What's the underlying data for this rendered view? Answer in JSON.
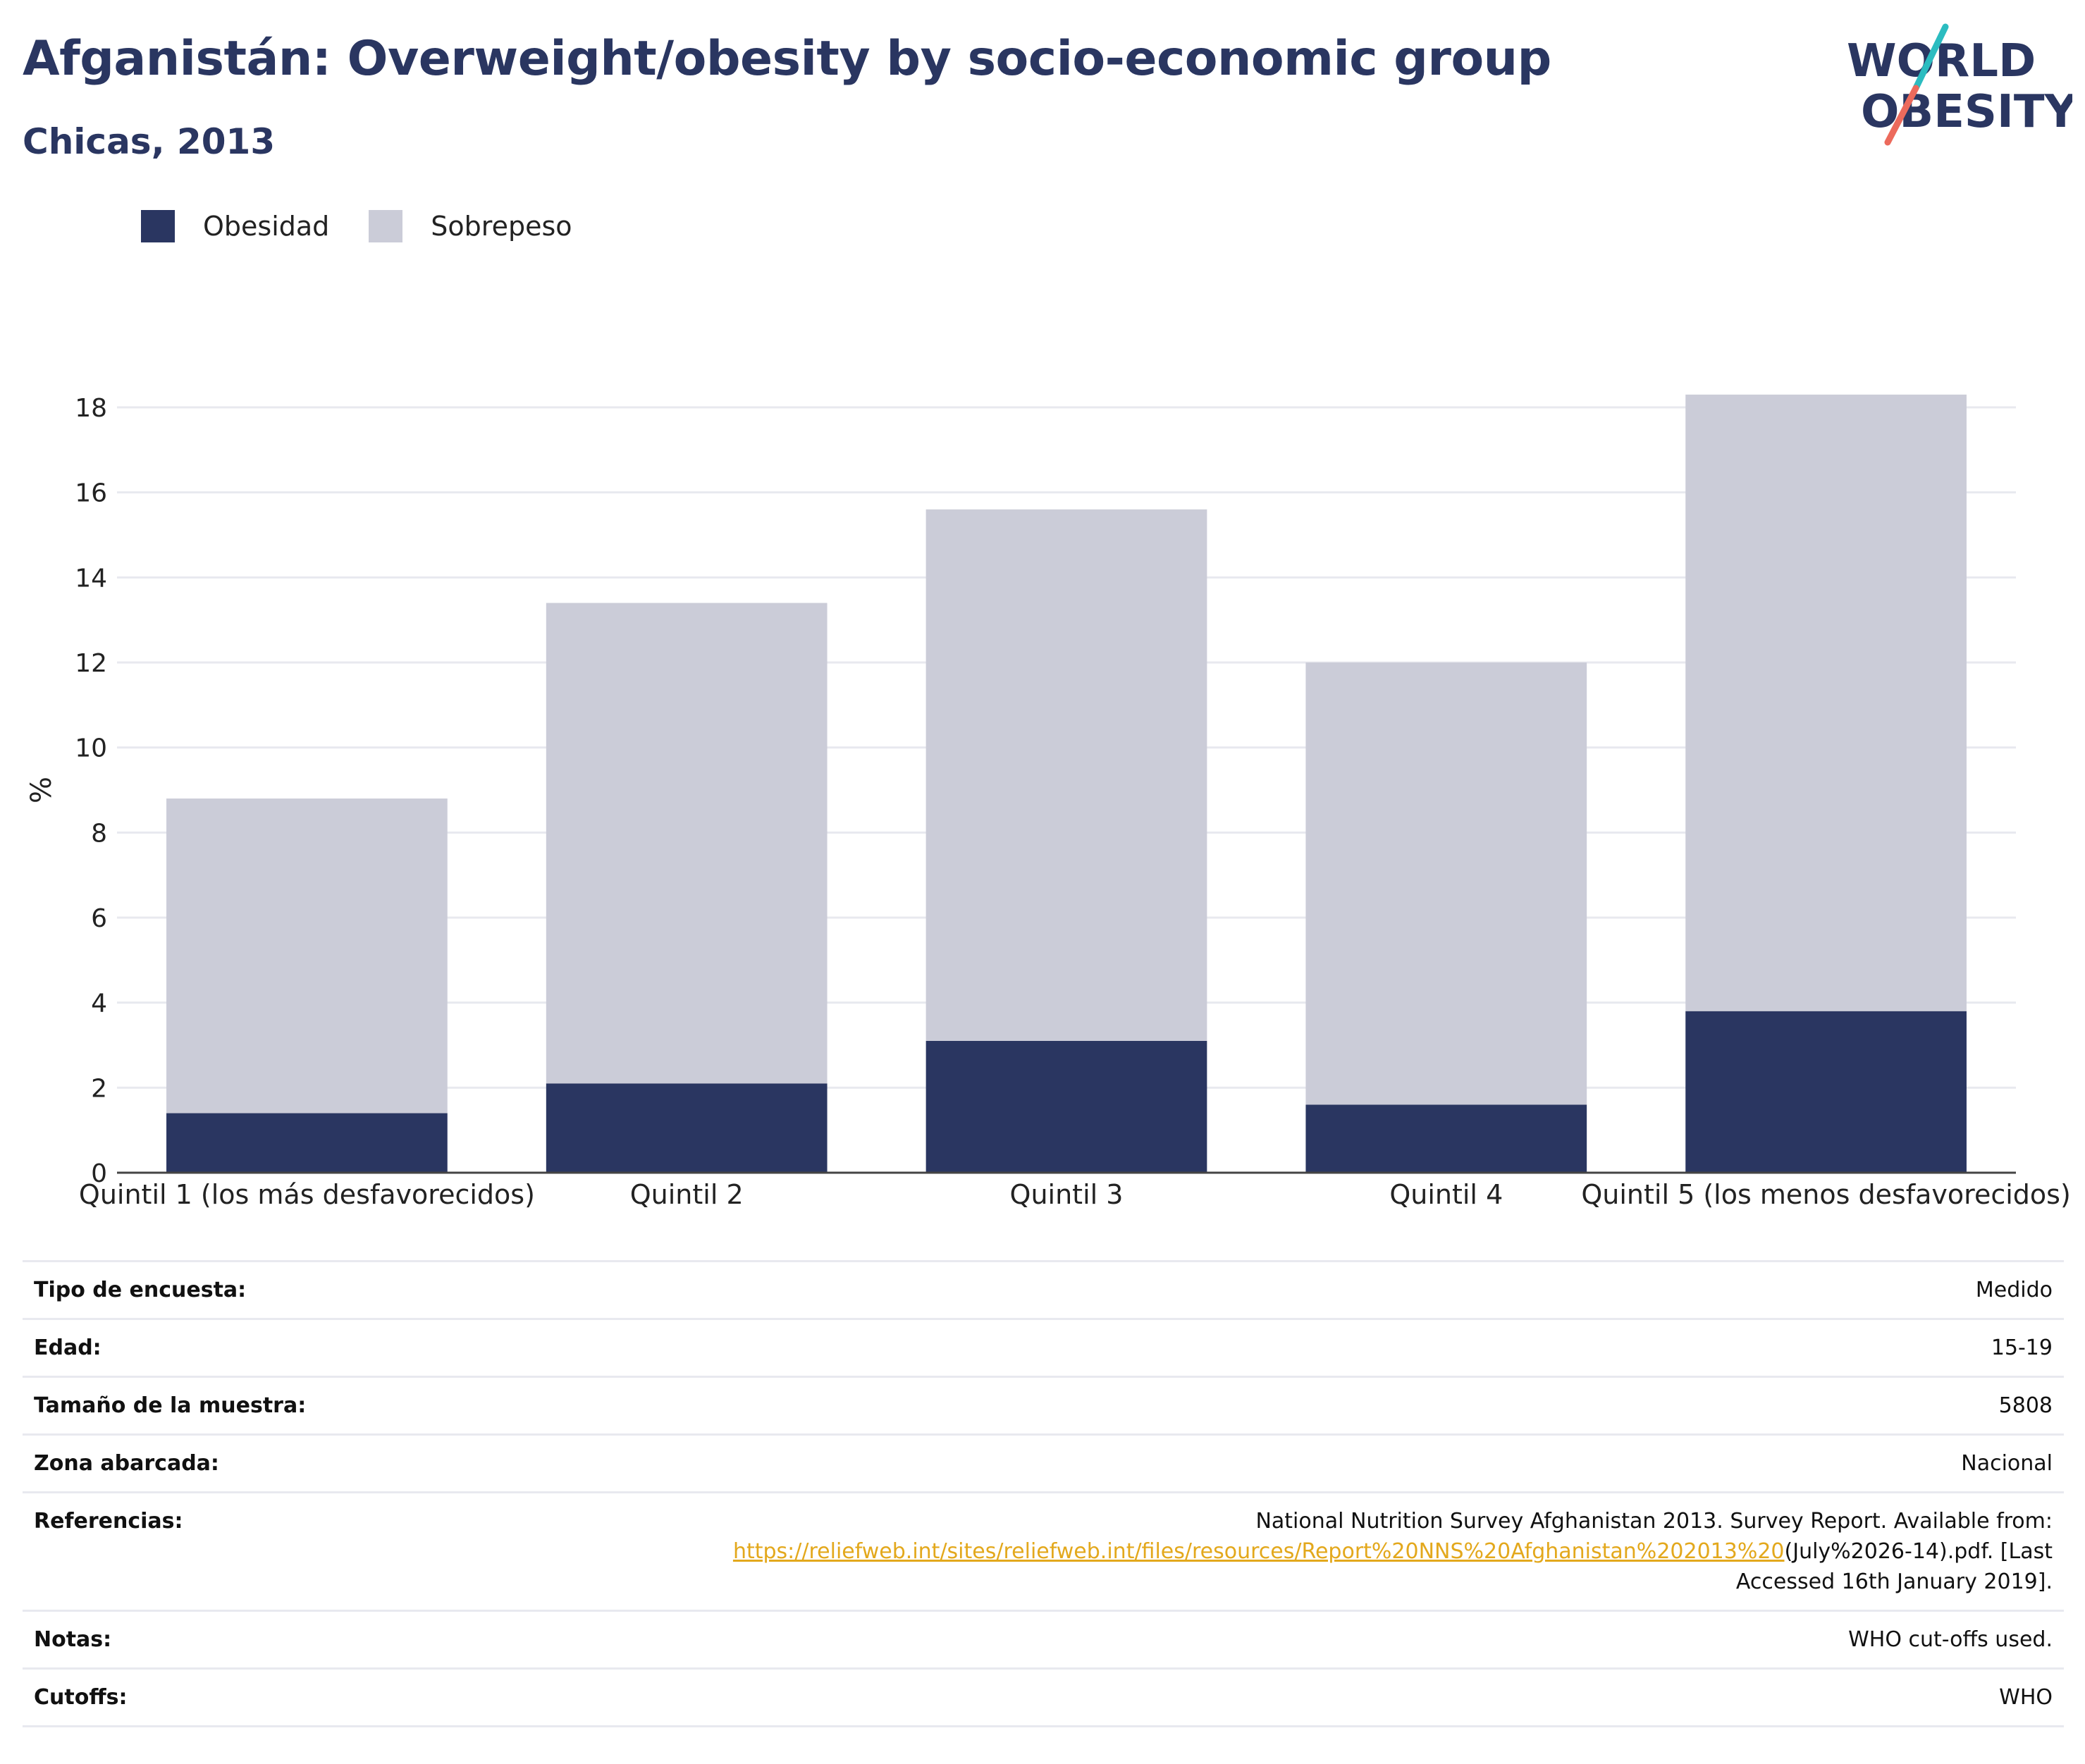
{
  "header": {
    "title": "Afganistán: Overweight/obesity by socio-economic group",
    "subtitle": "Chicas, 2013"
  },
  "logo": {
    "line1": "WORLD",
    "line2": "OBESITY"
  },
  "colors": {
    "obesidad": "#2a3661",
    "sobrepeso": "#cbccd8",
    "title": "#2a3661",
    "link": "#e3a81c",
    "logo_teal": "#2bbcc0",
    "logo_coral": "#ec6a5c"
  },
  "legend": [
    {
      "label": "Obesidad",
      "color": "#2a3661"
    },
    {
      "label": "Sobrepeso",
      "color": "#cbccd8"
    }
  ],
  "chart_data": {
    "type": "bar",
    "stacked": true,
    "categories": [
      "Quintil 1 (los más desfavorecidos)",
      "Quintil 2",
      "Quintil 3",
      "Quintil 4",
      "Quintil 5 (los menos desfavorecidos)"
    ],
    "series": [
      {
        "name": "Obesidad",
        "values": [
          1.4,
          2.1,
          3.1,
          1.6,
          3.8
        ]
      },
      {
        "name": "Sobrepeso",
        "values": [
          7.4,
          11.3,
          12.5,
          10.4,
          14.5
        ]
      }
    ],
    "totals": [
      8.8,
      13.4,
      15.6,
      12.0,
      18.3
    ],
    "ylabel": "%",
    "ylim": [
      0,
      18
    ],
    "yticks": [
      0,
      2,
      4,
      6,
      8,
      10,
      12,
      14,
      16,
      18
    ],
    "grid": true,
    "legend_position": "top-left"
  },
  "info": [
    {
      "key": "Tipo de encuesta:",
      "value": "Medido"
    },
    {
      "key": "Edad:",
      "value": "15-19"
    },
    {
      "key": "Tamaño de la muestra:",
      "value": "5808"
    },
    {
      "key": "Zona abarcada:",
      "value": "Nacional"
    },
    {
      "key": "Referencias:",
      "value": "National Nutrition Survey Afghanistan 2013. Survey Report. Available from:",
      "link": "https://reliefweb.int/sites/reliefweb.int/files/resources/Report%20NNS%20Afghanistan%202013%20",
      "value_after": "(July%2026-14).pdf. [Last Accessed 16th January 2019]."
    },
    {
      "key": "Notas:",
      "value": "WHO cut-offs used."
    },
    {
      "key": "Cutoffs:",
      "value": "WHO"
    }
  ]
}
